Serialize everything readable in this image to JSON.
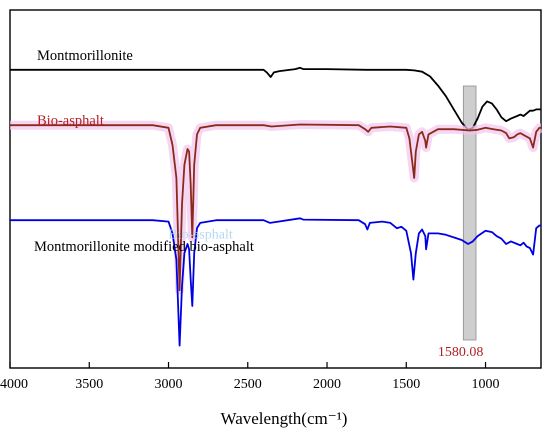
{
  "chart_data": {
    "type": "line",
    "xlabel": "Wavelength(cm⁻¹)",
    "ylabel": "",
    "xlim": [
      4000,
      650
    ],
    "x_reversed": true,
    "xticks": [
      4000,
      3500,
      3000,
      2500,
      2000,
      1500,
      1000
    ],
    "xtick_labels": [
      "4000",
      "3500",
      "3000",
      "2500",
      "2000",
      "1500",
      "1000"
    ],
    "y_ticks_shown": false,
    "grid": false,
    "series": [
      {
        "name": "Montmorillonite",
        "color": "#000000",
        "offset": 0.82,
        "points": [
          [
            4000,
            0
          ],
          [
            3000,
            0
          ],
          [
            2400,
            0
          ],
          [
            2380,
            -0.02
          ],
          [
            2355,
            -0.055
          ],
          [
            2335,
            -0.02
          ],
          [
            2300,
            -0.01
          ],
          [
            2200,
            0.005
          ],
          [
            2170,
            0.015
          ],
          [
            2150,
            0.005
          ],
          [
            2000,
            0.005
          ],
          [
            1750,
            0
          ],
          [
            1500,
            0
          ],
          [
            1450,
            -0.005
          ],
          [
            1400,
            -0.015
          ],
          [
            1350,
            -0.05
          ],
          [
            1300,
            -0.12
          ],
          [
            1250,
            -0.2
          ],
          [
            1200,
            -0.3
          ],
          [
            1150,
            -0.4
          ],
          [
            1110,
            -0.455
          ],
          [
            1080,
            -0.44
          ],
          [
            1050,
            -0.37
          ],
          [
            1020,
            -0.28
          ],
          [
            990,
            -0.24
          ],
          [
            960,
            -0.255
          ],
          [
            930,
            -0.3
          ],
          [
            900,
            -0.36
          ],
          [
            870,
            -0.39
          ],
          [
            840,
            -0.37
          ],
          [
            800,
            -0.35
          ],
          [
            780,
            -0.34
          ],
          [
            760,
            -0.35
          ],
          [
            720,
            -0.31
          ],
          [
            700,
            -0.31
          ],
          [
            680,
            -0.3
          ],
          [
            650,
            -0.3
          ]
        ]
      },
      {
        "name": "Bio-asphalt",
        "color": "#8b2a1c",
        "offset": 0.4,
        "points": [
          [
            4000,
            0
          ],
          [
            3100,
            0
          ],
          [
            3000,
            -0.02
          ],
          [
            2975,
            -0.15
          ],
          [
            2950,
            -0.4
          ],
          [
            2930,
            -1.25
          ],
          [
            2915,
            -0.6
          ],
          [
            2900,
            -0.3
          ],
          [
            2880,
            -0.18
          ],
          [
            2870,
            -0.2
          ],
          [
            2860,
            -0.45
          ],
          [
            2850,
            -0.85
          ],
          [
            2838,
            -0.3
          ],
          [
            2820,
            -0.07
          ],
          [
            2800,
            -0.02
          ],
          [
            2700,
            0
          ],
          [
            2400,
            0
          ],
          [
            2350,
            -0.01
          ],
          [
            2170,
            0.005
          ],
          [
            1800,
            0
          ],
          [
            1760,
            -0.03
          ],
          [
            1740,
            -0.05
          ],
          [
            1720,
            -0.02
          ],
          [
            1600,
            -0.01
          ],
          [
            1500,
            -0.02
          ],
          [
            1480,
            -0.1
          ],
          [
            1460,
            -0.3
          ],
          [
            1450,
            -0.4
          ],
          [
            1440,
            -0.2
          ],
          [
            1420,
            -0.07
          ],
          [
            1400,
            -0.05
          ],
          [
            1380,
            -0.12
          ],
          [
            1375,
            -0.17
          ],
          [
            1360,
            -0.07
          ],
          [
            1300,
            -0.03
          ],
          [
            1200,
            -0.03
          ],
          [
            1100,
            -0.04
          ],
          [
            1050,
            -0.035
          ],
          [
            1000,
            -0.02
          ],
          [
            950,
            -0.03
          ],
          [
            900,
            -0.04
          ],
          [
            870,
            -0.06
          ],
          [
            850,
            -0.1
          ],
          [
            820,
            -0.09
          ],
          [
            800,
            -0.07
          ],
          [
            780,
            -0.06
          ],
          [
            750,
            -0.08
          ],
          [
            720,
            -0.1
          ],
          [
            700,
            -0.17
          ],
          [
            680,
            -0.05
          ],
          [
            660,
            -0.02
          ],
          [
            650,
            -0.02
          ]
        ]
      },
      {
        "name": "Montmorillonite modified bio-asphalt",
        "color": "#0000e6",
        "offset": -0.32,
        "points": [
          [
            4000,
            0
          ],
          [
            3100,
            0
          ],
          [
            3000,
            -0.01
          ],
          [
            2975,
            -0.1
          ],
          [
            2950,
            -0.3
          ],
          [
            2930,
            -0.95
          ],
          [
            2915,
            -0.5
          ],
          [
            2900,
            -0.25
          ],
          [
            2880,
            -0.18
          ],
          [
            2870,
            -0.22
          ],
          [
            2860,
            -0.45
          ],
          [
            2850,
            -0.65
          ],
          [
            2838,
            -0.25
          ],
          [
            2820,
            -0.06
          ],
          [
            2800,
            -0.02
          ],
          [
            2700,
            0
          ],
          [
            2400,
            0
          ],
          [
            2360,
            -0.02
          ],
          [
            2170,
            0.015
          ],
          [
            2150,
            0.005
          ],
          [
            1800,
            0
          ],
          [
            1760,
            -0.03
          ],
          [
            1745,
            -0.07
          ],
          [
            1730,
            -0.02
          ],
          [
            1650,
            -0.01
          ],
          [
            1600,
            -0.02
          ],
          [
            1560,
            -0.06
          ],
          [
            1530,
            -0.05
          ],
          [
            1500,
            -0.08
          ],
          [
            1470,
            -0.25
          ],
          [
            1455,
            -0.45
          ],
          [
            1440,
            -0.25
          ],
          [
            1420,
            -0.1
          ],
          [
            1400,
            -0.07
          ],
          [
            1380,
            -0.12
          ],
          [
            1375,
            -0.22
          ],
          [
            1360,
            -0.1
          ],
          [
            1300,
            -0.1
          ],
          [
            1250,
            -0.11
          ],
          [
            1200,
            -0.13
          ],
          [
            1150,
            -0.15
          ],
          [
            1110,
            -0.18
          ],
          [
            1080,
            -0.16
          ],
          [
            1050,
            -0.12
          ],
          [
            1000,
            -0.08
          ],
          [
            960,
            -0.09
          ],
          [
            930,
            -0.12
          ],
          [
            900,
            -0.14
          ],
          [
            870,
            -0.18
          ],
          [
            840,
            -0.16
          ],
          [
            800,
            -0.18
          ],
          [
            780,
            -0.19
          ],
          [
            760,
            -0.17
          ],
          [
            740,
            -0.2
          ],
          [
            720,
            -0.21
          ],
          [
            700,
            -0.26
          ],
          [
            680,
            -0.06
          ],
          [
            660,
            -0.04
          ],
          [
            650,
            -0.04
          ]
        ]
      }
    ],
    "highlight_band": {
      "x_range": [
        1140,
        1060
      ],
      "color": "#cccccc"
    },
    "annotations": [
      {
        "text": "1580.08",
        "x": 1100,
        "color": "#b22222"
      },
      {
        "text": "Bio-asphalt",
        "x": 2880,
        "y": -0.42,
        "color": "#b8d8f0"
      }
    ]
  }
}
